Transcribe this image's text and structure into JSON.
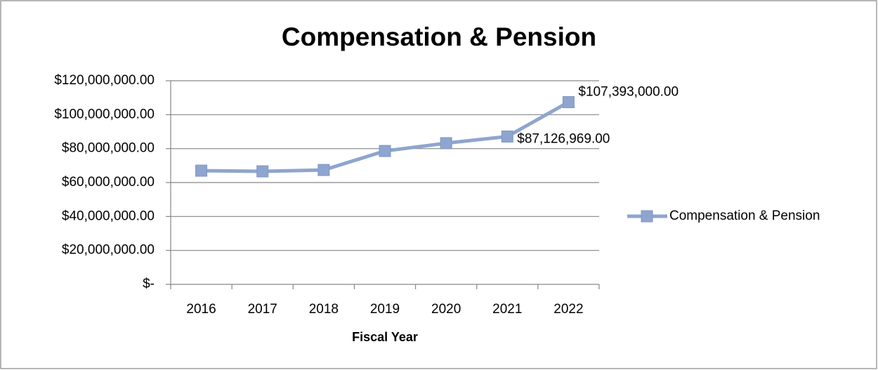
{
  "chart_data": {
    "type": "line",
    "title": "Compensation & Pension",
    "x_label": "Fiscal Year",
    "categories": [
      "2016",
      "2017",
      "2018",
      "2019",
      "2020",
      "2021",
      "2022"
    ],
    "series": [
      {
        "name": "Compensation & Pension",
        "color": "#8ea5cf",
        "values": [
          67000000,
          66600000,
          67400000,
          78600000,
          83200000,
          87126969,
          107393000
        ],
        "value_labels": [
          null,
          null,
          null,
          null,
          null,
          "$87,126,969.00",
          "$107,393,000.00"
        ]
      }
    ],
    "ylim": [
      0,
      120000000
    ],
    "yticks": [
      {
        "value": 0,
        "label": "$-"
      },
      {
        "value": 20000000,
        "label": "$20,000,000.00"
      },
      {
        "value": 40000000,
        "label": "$40,000,000.00"
      },
      {
        "value": 60000000,
        "label": "$60,000,000.00"
      },
      {
        "value": 80000000,
        "label": "$80,000,000.00"
      },
      {
        "value": 100000000,
        "label": "$100,000,000.00"
      },
      {
        "value": 120000000,
        "label": "$120,000,000.00"
      }
    ],
    "grid": true,
    "legend": "right"
  }
}
